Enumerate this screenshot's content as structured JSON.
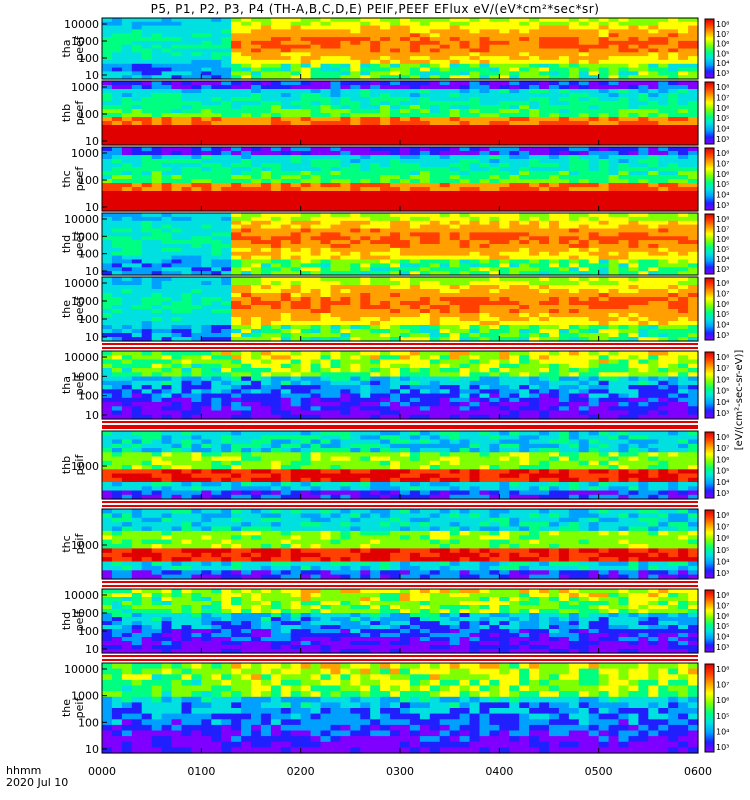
{
  "title": "P5, P1, P2, P3, P4 (TH-A,B,C,D,E) PEIF,PEEF EFlux eV/(eV*cm²*sec*sr)",
  "colorbar_unit_label": "[eV/(cm²-sec-sr-eV)]",
  "footer": {
    "x_axis_label": "hhmm",
    "date_label": "2020 Jul 10"
  },
  "chart_data": [
    {
      "type": "heatmap",
      "probe": "tha",
      "product": "peef",
      "ylabel": [
        "tha",
        "peef"
      ],
      "y_ticks": [
        "10",
        "100",
        "1000",
        "10000"
      ],
      "y_scale": "log",
      "colorbar_ticks": [
        "10⁸",
        "10⁷",
        "10⁶",
        "10⁵",
        "10⁴",
        "10³"
      ]
    },
    {
      "type": "heatmap",
      "probe": "thb",
      "product": "peef",
      "ylabel": [
        "thb",
        "peef"
      ],
      "y_ticks": [
        "10",
        "100",
        "1000"
      ],
      "y_scale": "log",
      "colorbar_ticks": [
        "10⁸",
        "10⁷",
        "10⁶",
        "10⁵",
        "10⁴",
        "10³"
      ]
    },
    {
      "type": "heatmap",
      "probe": "thc",
      "product": "peef",
      "ylabel": [
        "thc",
        "peef"
      ],
      "y_ticks": [
        "10",
        "100",
        "1000"
      ],
      "y_scale": "log",
      "colorbar_ticks": [
        "10⁸",
        "10⁷",
        "10⁶",
        "10⁵",
        "10⁴",
        "10³"
      ]
    },
    {
      "type": "heatmap",
      "probe": "thd",
      "product": "peef",
      "ylabel": [
        "thd",
        "peef"
      ],
      "y_ticks": [
        "10",
        "100",
        "1000",
        "10000"
      ],
      "y_scale": "log",
      "colorbar_ticks": [
        "10⁸",
        "10⁷",
        "10⁶",
        "10⁵",
        "10⁴",
        "10³"
      ]
    },
    {
      "type": "heatmap",
      "probe": "the",
      "product": "peef",
      "ylabel": [
        "the",
        "peef"
      ],
      "y_ticks": [
        "10",
        "100",
        "1000",
        "10000"
      ],
      "y_scale": "log",
      "colorbar_ticks": [
        "10⁸",
        "10⁷",
        "10⁶",
        "10⁵",
        "10⁴",
        "10³"
      ]
    },
    {
      "type": "heatmap",
      "probe": "tha",
      "product": "peif",
      "ylabel": [
        "tha",
        "peif"
      ],
      "y_ticks": [
        "10",
        "100",
        "1000",
        "10000"
      ],
      "y_scale": "log",
      "colorbar_ticks": [
        "10⁸",
        "10⁷",
        "10⁶",
        "10⁵",
        "10⁴",
        "10³"
      ]
    },
    {
      "type": "heatmap",
      "probe": "thb",
      "product": "peif",
      "ylabel": [
        "thb",
        "peif"
      ],
      "y_ticks": [
        "1000"
      ],
      "y_scale": "log",
      "colorbar_ticks": [
        "10⁸",
        "10⁷",
        "10⁶",
        "10⁵",
        "10⁴",
        "10³"
      ]
    },
    {
      "type": "heatmap",
      "probe": "thc",
      "product": "peif",
      "ylabel": [
        "thc",
        "peif"
      ],
      "y_ticks": [
        "1000"
      ],
      "y_scale": "log",
      "colorbar_ticks": [
        "10⁸",
        "10⁷",
        "10⁶",
        "10⁵",
        "10⁴",
        "10³"
      ]
    },
    {
      "type": "heatmap",
      "probe": "thd",
      "product": "peif",
      "ylabel": [
        "thd",
        "peif"
      ],
      "y_ticks": [
        "10",
        "100",
        "1000",
        "10000"
      ],
      "y_scale": "log",
      "colorbar_ticks": [
        "10⁸",
        "10⁷",
        "10⁶",
        "10⁵",
        "10⁴",
        "10³"
      ]
    },
    {
      "type": "heatmap",
      "probe": "the",
      "product": "peif",
      "ylabel": [
        "the",
        "peif"
      ],
      "y_ticks": [
        "10",
        "100",
        "1000",
        "10000"
      ],
      "y_scale": "log",
      "colorbar_ticks": [
        "10⁸",
        "10⁷",
        "10⁶",
        "10⁵",
        "10⁴",
        "10³"
      ]
    }
  ],
  "x_ticks": [
    "0000",
    "0100",
    "0200",
    "0300",
    "0400",
    "0500",
    "0600"
  ],
  "colormap": [
    "#8000ff",
    "#2020ff",
    "#00a0ff",
    "#00e0e0",
    "#00ff80",
    "#80ff00",
    "#ffff00",
    "#ffa000",
    "#ff4000",
    "#e00000"
  ]
}
